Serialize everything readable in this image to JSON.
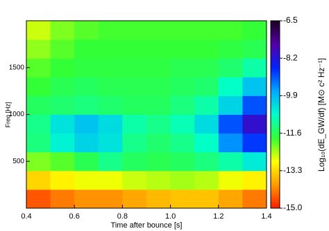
{
  "chart_data": {
    "type": "heatmap",
    "xlabel": "Time after bounce [s]",
    "ylabel": "Freq [Hz]",
    "colorbar_label": "Log₁₀(dE_GW/df) [M⊙ c² Hz⁻¹]",
    "xbins": [
      0.4,
      0.5,
      0.6,
      0.7,
      0.8,
      0.9,
      1.0,
      1.1,
      1.2,
      1.3,
      1.4
    ],
    "ybins": [
      0,
      200,
      400,
      600,
      800,
      1000,
      1200,
      1400,
      1600,
      1800,
      2000
    ],
    "z": [
      [
        -14.5,
        -14.2,
        -14,
        -14,
        -13.8,
        -13.6,
        -13.5,
        -13.5,
        -13.8,
        -14.2
      ],
      [
        -13.3,
        -13,
        -12.8,
        -12.8,
        -12.6,
        -12.5,
        -12.4,
        -12.5,
        -12.8,
        -13
      ],
      [
        -12.2,
        -12,
        -11.6,
        -11.2,
        -11.5,
        -11.6,
        -11.5,
        -11.3,
        -11,
        -10.5
      ],
      [
        -11.3,
        -10.6,
        -10.2,
        -10.4,
        -11.2,
        -11.4,
        -11.2,
        -10.8,
        -9.5,
        -8.8
      ],
      [
        -11.2,
        -10.4,
        -10,
        -10.3,
        -11,
        -11.2,
        -10.9,
        -10.3,
        -9,
        -8
      ],
      [
        -11.5,
        -11.4,
        -11.3,
        -11.4,
        -11.5,
        -11.5,
        -11.3,
        -11,
        -10.2,
        -9
      ],
      [
        -11.8,
        -11.6,
        -11.5,
        -11.6,
        -11.6,
        -11.6,
        -11.5,
        -11.4,
        -10.8,
        -10
      ],
      [
        -12,
        -11.8,
        -11.7,
        -11.7,
        -11.7,
        -11.7,
        -11.6,
        -11.6,
        -11.4,
        -11
      ],
      [
        -12.3,
        -12,
        -11.8,
        -11.8,
        -11.8,
        -11.8,
        -11.8,
        -11.8,
        -11.7,
        -11.6
      ],
      [
        -12.6,
        -12.2,
        -12,
        -11.9,
        -11.9,
        -11.9,
        -11.9,
        -11.9,
        -11.9,
        -11.8
      ]
    ],
    "xlim": [
      0.4,
      1.4
    ],
    "xticks": [
      0.4,
      0.6,
      0.8,
      {
        "value": 1,
        "label": "1.0"
      },
      1.2,
      1.4
    ],
    "ylim": [
      0,
      2000
    ],
    "yticks": [
      500,
      1000,
      1500
    ],
    "zlim": [
      -15,
      -6.5
    ],
    "zticks": [
      -6.5,
      -8.2,
      -9.9,
      -11.6,
      -13.3,
      {
        "value": -15,
        "label": "-15.0"
      }
    ],
    "colormap": [
      "#ff1a00",
      "#ff9900",
      "#ffff00",
      "#33ff33",
      "#00ffcc",
      "#00aaff",
      "#0022ff",
      "#5500aa",
      "#1a0020"
    ]
  }
}
